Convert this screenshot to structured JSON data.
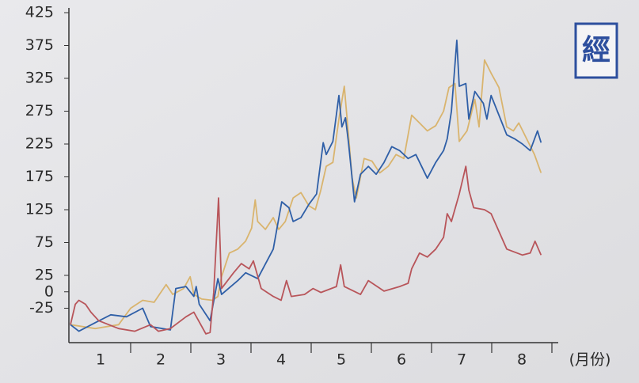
{
  "chart_data": {
    "type": "line",
    "logo": "經",
    "x_label": "(月份)",
    "xlim": [
      0,
      8.1
    ],
    "xticks": [
      {
        "value": 0.5,
        "label": "1"
      },
      {
        "value": 1.5,
        "label": "2"
      },
      {
        "value": 2.5,
        "label": "3"
      },
      {
        "value": 3.5,
        "label": "4"
      },
      {
        "value": 4.5,
        "label": "5"
      },
      {
        "value": 5.5,
        "label": "6"
      },
      {
        "value": 6.5,
        "label": "7"
      },
      {
        "value": 7.5,
        "label": "8"
      }
    ],
    "ylim": [
      -75,
      425
    ],
    "yticks": [
      425,
      375,
      325,
      275,
      225,
      175,
      125,
      75,
      25,
      0,
      -25
    ],
    "series": [
      {
        "color": "#d9b46e",
        "x": [
          0.0,
          0.41,
          0.8,
          1.0,
          1.2,
          1.39,
          1.59,
          1.7,
          1.88,
          1.99,
          2.05,
          2.18,
          2.36,
          2.45,
          2.51,
          2.64,
          2.78,
          2.91,
          3.01,
          3.07,
          3.11,
          3.24,
          3.37,
          3.46,
          3.57,
          3.7,
          3.83,
          3.96,
          4.07,
          4.16,
          4.25,
          4.36,
          4.46,
          4.55,
          4.62,
          4.68,
          4.75,
          4.88,
          5.01,
          5.14,
          5.28,
          5.41,
          5.54,
          5.67,
          5.8,
          5.93,
          6.07,
          6.2,
          6.29,
          6.39,
          6.46,
          6.59,
          6.72,
          6.79,
          6.88,
          6.99,
          7.12,
          7.25,
          7.36,
          7.45,
          7.58,
          7.71,
          7.82
        ],
        "values": [
          -50,
          -56,
          -50,
          -25,
          -13,
          -16,
          11,
          -4,
          5,
          23,
          -4,
          -11,
          -13,
          -7,
          23,
          59,
          65,
          77,
          97,
          140,
          107,
          95,
          113,
          95,
          107,
          143,
          151,
          131,
          125,
          155,
          191,
          197,
          263,
          313,
          239,
          173,
          143,
          203,
          199,
          181,
          191,
          209,
          203,
          269,
          257,
          245,
          253,
          275,
          311,
          317,
          229,
          245,
          293,
          251,
          353,
          333,
          311,
          251,
          245,
          257,
          233,
          209,
          181
        ]
      },
      {
        "color": "#2f5fa7",
        "x": [
          0.0,
          0.14,
          0.41,
          0.67,
          0.93,
          1.2,
          1.33,
          1.66,
          1.75,
          1.92,
          2.05,
          2.09,
          2.14,
          2.32,
          2.45,
          2.51,
          2.78,
          2.91,
          3.11,
          3.37,
          3.51,
          3.63,
          3.7,
          3.83,
          3.96,
          4.09,
          4.2,
          4.25,
          4.36,
          4.46,
          4.51,
          4.57,
          4.62,
          4.72,
          4.82,
          4.95,
          5.08,
          5.21,
          5.34,
          5.47,
          5.61,
          5.74,
          5.93,
          6.07,
          6.2,
          6.26,
          6.33,
          6.42,
          6.46,
          6.57,
          6.62,
          6.72,
          6.86,
          6.92,
          6.99,
          7.12,
          7.25,
          7.38,
          7.51,
          7.64,
          7.76,
          7.82
        ],
        "values": [
          -50,
          -60,
          -47,
          -35,
          -38,
          -25,
          -53,
          -58,
          5,
          8,
          -7,
          8,
          -19,
          -44,
          20,
          -4,
          17,
          29,
          20,
          65,
          137,
          128,
          107,
          113,
          133,
          149,
          227,
          209,
          229,
          299,
          251,
          265,
          227,
          137,
          179,
          191,
          179,
          197,
          221,
          215,
          203,
          209,
          173,
          197,
          215,
          233,
          275,
          383,
          313,
          317,
          263,
          305,
          287,
          263,
          299,
          269,
          239,
          233,
          225,
          215,
          245,
          227
        ]
      },
      {
        "color": "#b8555a",
        "x": [
          0.0,
          0.08,
          0.14,
          0.25,
          0.34,
          0.47,
          0.8,
          1.07,
          1.33,
          1.46,
          1.66,
          1.92,
          2.05,
          2.25,
          2.32,
          2.38,
          2.46,
          2.51,
          2.71,
          2.84,
          2.97,
          3.04,
          3.17,
          3.37,
          3.5,
          3.59,
          3.67,
          3.89,
          4.03,
          4.16,
          4.42,
          4.49,
          4.55,
          4.82,
          4.95,
          5.21,
          5.47,
          5.61,
          5.67,
          5.8,
          5.93,
          6.07,
          6.2,
          6.26,
          6.33,
          6.46,
          6.57,
          6.62,
          6.7,
          6.88,
          6.99,
          7.12,
          7.25,
          7.51,
          7.64,
          7.72,
          7.82
        ],
        "values": [
          -50,
          -19,
          -13,
          -19,
          -31,
          -44,
          -56,
          -60,
          -50,
          -60,
          -56,
          -38,
          -31,
          -64,
          -62,
          -1,
          143,
          5,
          29,
          43,
          35,
          47,
          5,
          -7,
          -13,
          17,
          -7,
          -4,
          5,
          -1,
          8,
          41,
          8,
          -4,
          17,
          1,
          8,
          13,
          35,
          59,
          53,
          65,
          83,
          119,
          107,
          149,
          191,
          155,
          128,
          125,
          119,
          92,
          65,
          56,
          59,
          77,
          56
        ]
      }
    ]
  }
}
